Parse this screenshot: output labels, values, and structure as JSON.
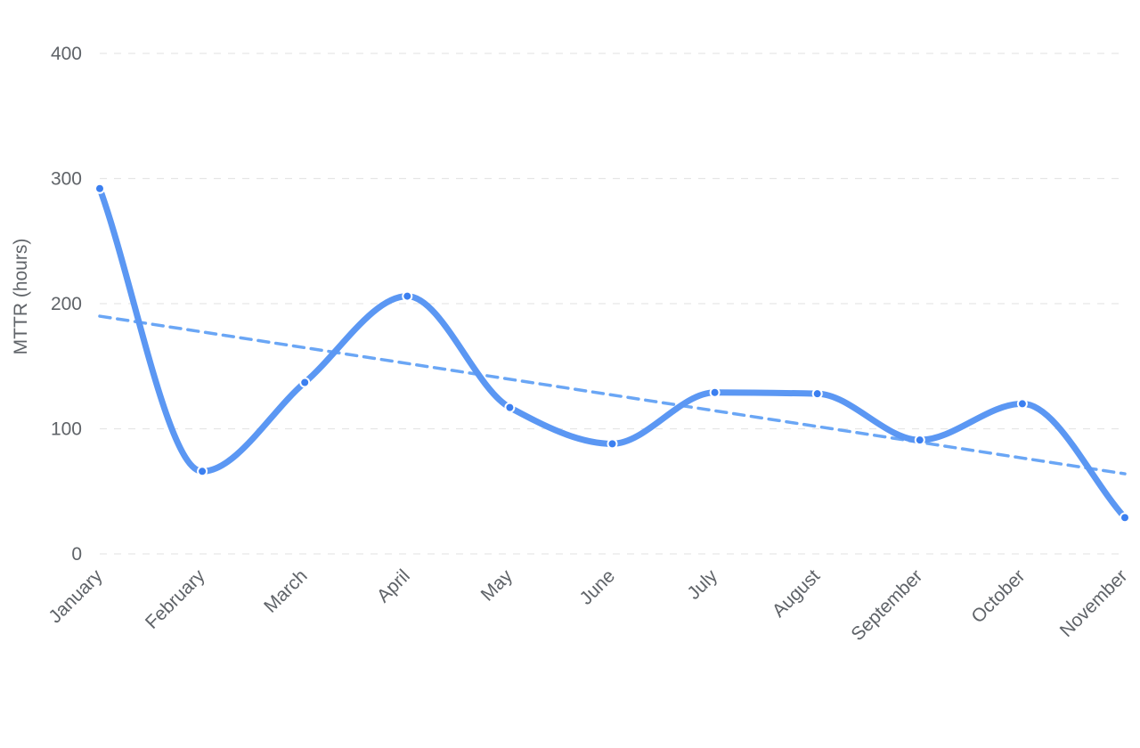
{
  "chart_data": {
    "type": "line",
    "title": "",
    "xlabel": "",
    "ylabel": "MTTR (hours)",
    "ylim": [
      0,
      400
    ],
    "yticks": [
      0,
      100,
      200,
      300,
      400
    ],
    "grid": true,
    "legend": "none",
    "categories": [
      "January",
      "February",
      "March",
      "April",
      "May",
      "June",
      "July",
      "August",
      "September",
      "October",
      "November"
    ],
    "series": [
      {
        "values": [
          292,
          66,
          137,
          206,
          117,
          88,
          129,
          128,
          91,
          120,
          29
        ],
        "color": "#5b97f3",
        "smooth": true,
        "markers": true
      }
    ],
    "trendline": {
      "start": 190,
      "end": 64,
      "color": "#6aa6f5",
      "style": "dashed"
    }
  }
}
